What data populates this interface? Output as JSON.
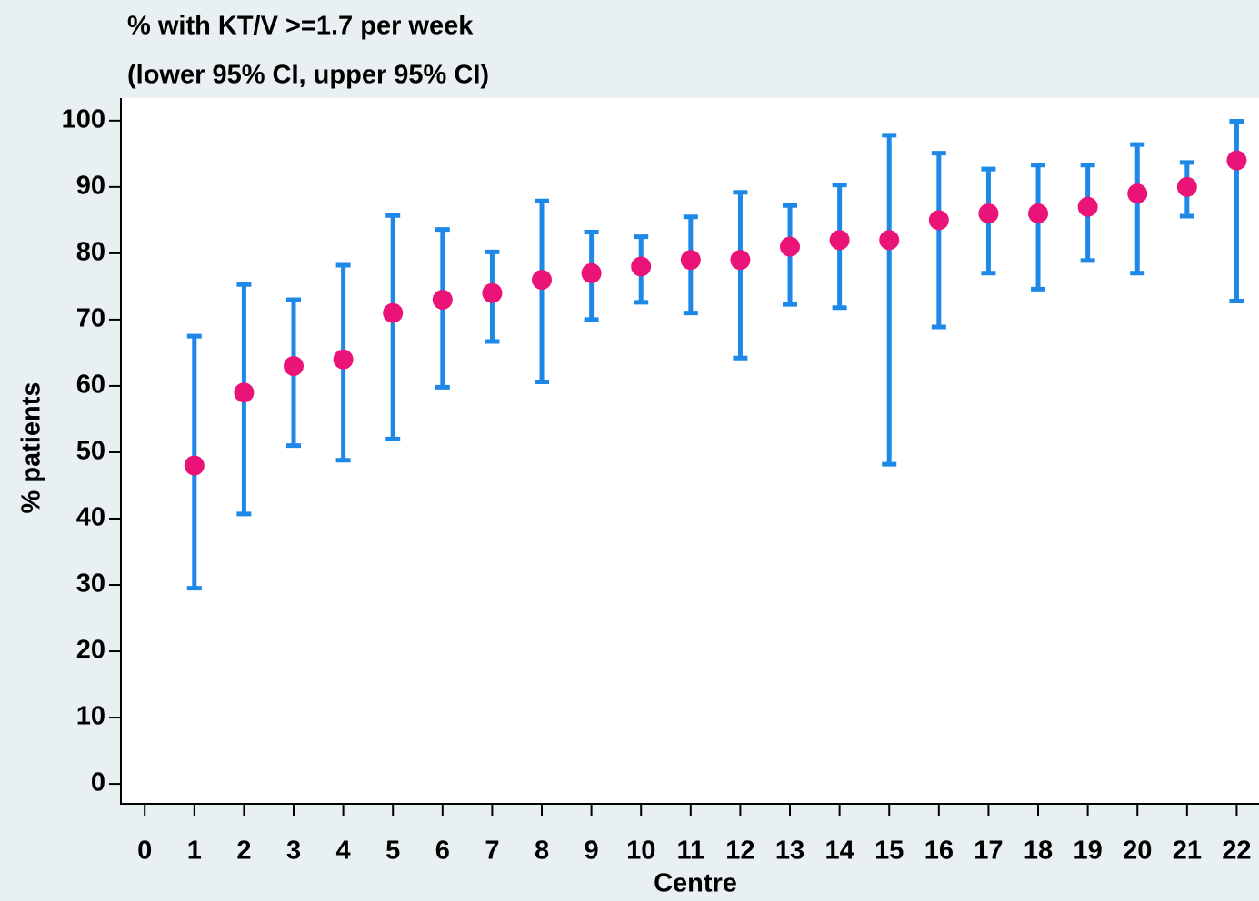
{
  "chart_data": {
    "type": "errorbar",
    "title": [
      "% with KT/V >=1.7 per week",
      "(lower 95% CI, upper 95% CI)"
    ],
    "x_label": "Centre",
    "y_label": "% patients",
    "x": [
      1,
      2,
      3,
      4,
      5,
      6,
      7,
      8,
      9,
      10,
      11,
      12,
      13,
      14,
      15,
      16,
      17,
      18,
      19,
      20,
      21,
      22
    ],
    "values": [
      48,
      59,
      63,
      64,
      71,
      73,
      74,
      76,
      77,
      78,
      79,
      79,
      81,
      82,
      82,
      85,
      86,
      86,
      87,
      89,
      90,
      94
    ],
    "lower": [
      29.5,
      40.7,
      51,
      48.8,
      52,
      59.8,
      66.7,
      60.6,
      70,
      72.6,
      71,
      64.2,
      72.3,
      71.8,
      48.2,
      68.9,
      77,
      74.6,
      78.9,
      77,
      85.6,
      72.8
    ],
    "upper": [
      67.5,
      75.3,
      73,
      78.2,
      85.7,
      83.6,
      80.2,
      87.9,
      83.2,
      82.5,
      85.5,
      89.2,
      87.2,
      90.3,
      97.8,
      95.1,
      92.7,
      93.3,
      93.3,
      96.4,
      93.7,
      99.9
    ],
    "color": "#ea1479",
    "error_color": "#1e88e8",
    "xlim": [
      -0.48,
      22.45
    ],
    "ylim": [
      -3,
      103.4
    ],
    "xticks": [
      0,
      1,
      2,
      3,
      4,
      5,
      6,
      7,
      8,
      9,
      10,
      11,
      12,
      13,
      14,
      15,
      16,
      17,
      18,
      19,
      20,
      21,
      22
    ],
    "yticks": [
      0,
      10,
      20,
      30,
      40,
      50,
      60,
      70,
      80,
      90,
      100
    ],
    "grid": false
  }
}
